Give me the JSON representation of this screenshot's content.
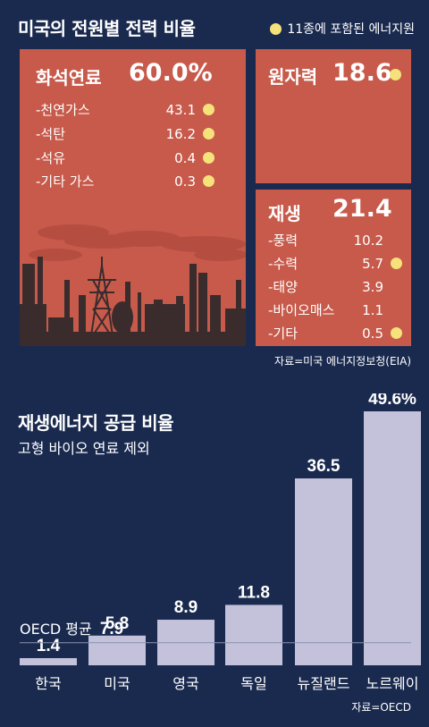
{
  "header": {
    "title": "미국의 전원별 전력 비율",
    "legend_label": "11종에 포함된 에너지원",
    "legend_color": "#f5e27a"
  },
  "fossil": {
    "label": "화석연료",
    "value": "60.0%",
    "items": [
      {
        "name": "-천연가스",
        "value": "43.1",
        "dot": true
      },
      {
        "name": "-석탄",
        "value": "16.2",
        "dot": true
      },
      {
        "name": "-석유",
        "value": "0.4",
        "dot": true
      },
      {
        "name": "-기타 가스",
        "value": "0.3",
        "dot": true
      }
    ]
  },
  "nuclear": {
    "label": "원자력",
    "value": "18.6",
    "dot": true
  },
  "renewable": {
    "label": "재생",
    "value": "21.4",
    "items": [
      {
        "name": "-풍력",
        "value": "10.2",
        "dot": false
      },
      {
        "name": "-수력",
        "value": "5.7",
        "dot": true
      },
      {
        "name": "-태양",
        "value": "3.9",
        "dot": false
      },
      {
        "name": "-바이오매스",
        "value": "1.1",
        "dot": false
      },
      {
        "name": "-기타",
        "value": "0.5",
        "dot": true
      }
    ]
  },
  "source1": "자료=미국 에너지정보청(EIA)",
  "colors": {
    "background": "#1a2a4f",
    "panel": "#c75a4a",
    "bar": "#c4c1da",
    "dot": "#f5e27a"
  },
  "chart_data": {
    "type": "bar",
    "title": "재생에너지 공급 비율",
    "subtitle": "고형 바이오 연료 제외",
    "categories": [
      "한국",
      "미국",
      "영국",
      "독일",
      "뉴질랜드",
      "노르웨이"
    ],
    "values": [
      1.4,
      5.8,
      8.9,
      11.8,
      36.5,
      49.6
    ],
    "value_labels": [
      "1.4",
      "5.8",
      "8.9",
      "11.8",
      "36.5",
      "49.6%"
    ],
    "reference_line": {
      "label": "OECD 평균",
      "value": 7.9,
      "value_label": "7.9"
    },
    "ylim": [
      0,
      49.6
    ],
    "grid": false,
    "source": "자료=OECD"
  }
}
